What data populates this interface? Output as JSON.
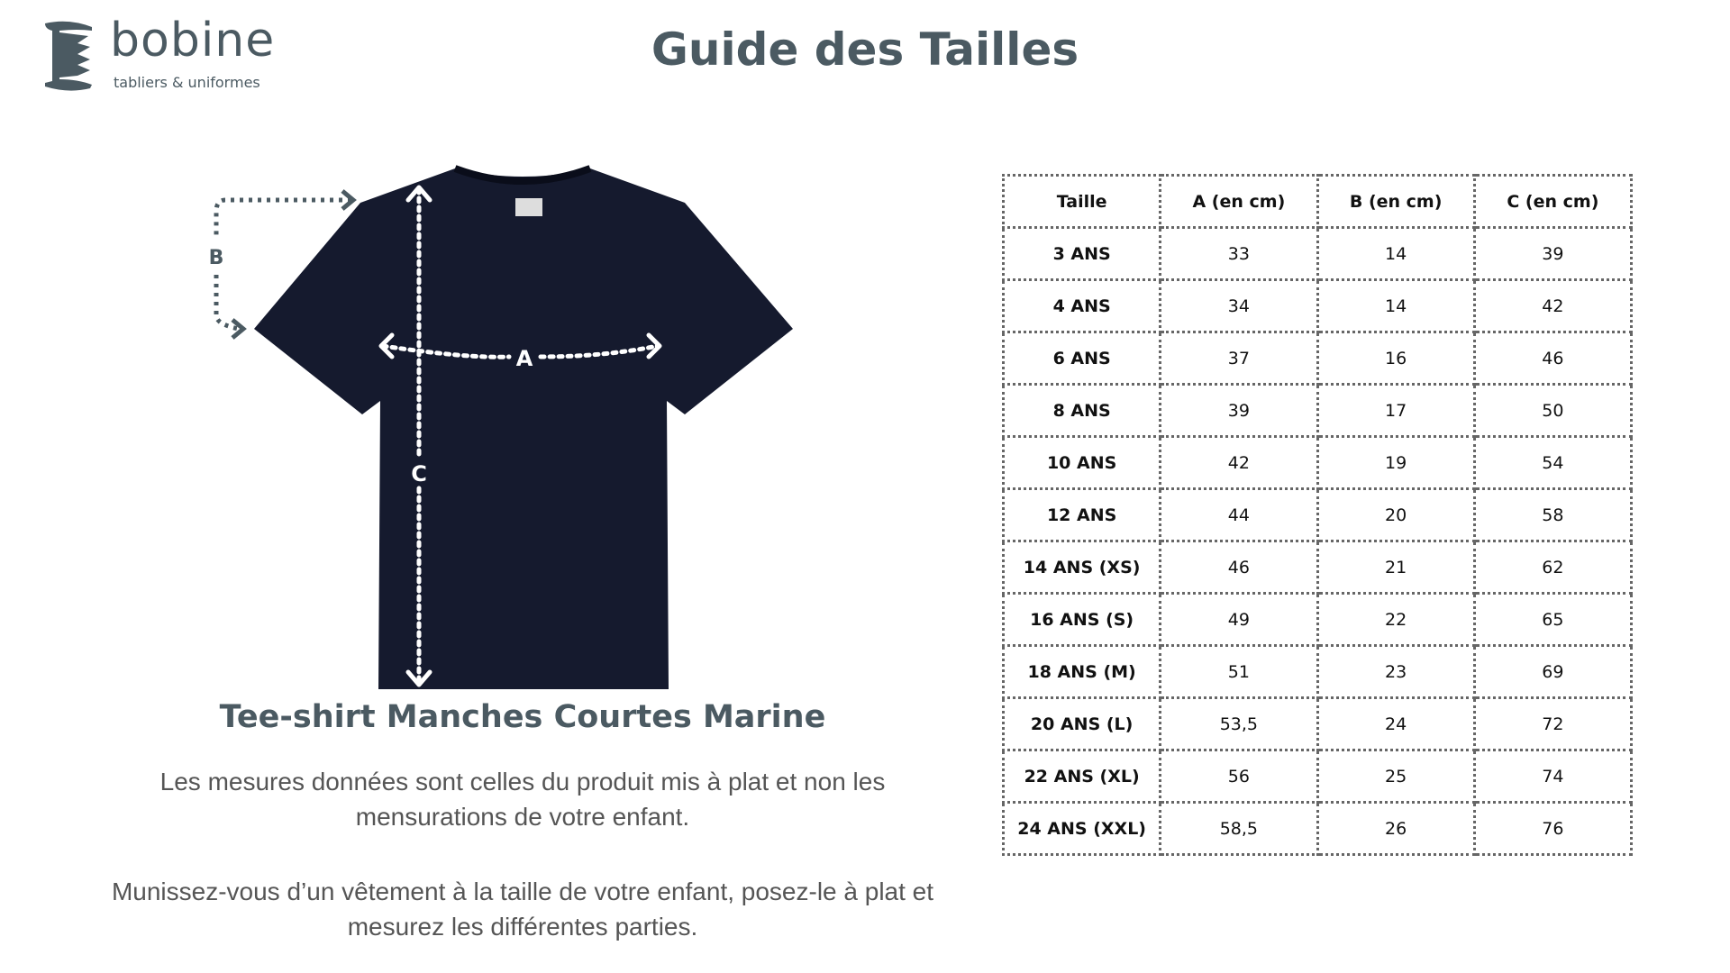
{
  "logo": {
    "word": "bobine",
    "tagline": "tabliers & uniformes"
  },
  "title": "Guide des Tailles",
  "diagram": {
    "label_a": "A",
    "label_b": "B",
    "label_c": "C",
    "shirt_color": "#151a2e"
  },
  "product_name": "Tee-shirt Manches Courtes Marine",
  "paragraphs": [
    "Les mesures données sont celles du produit mis à plat et non les mensurations de votre enfant.",
    "Munissez-vous d’un vêtement à la taille de votre enfant, posez-le à plat et mesurez les différentes parties."
  ],
  "table": {
    "headers": [
      "Taille",
      "A (en cm)",
      "B (en cm)",
      "C (en cm)"
    ],
    "rows": [
      [
        "3 ANS",
        "33",
        "14",
        "39"
      ],
      [
        "4 ANS",
        "34",
        "14",
        "42"
      ],
      [
        "6 ANS",
        "37",
        "16",
        "46"
      ],
      [
        "8 ANS",
        "39",
        "17",
        "50"
      ],
      [
        "10 ANS",
        "42",
        "19",
        "54"
      ],
      [
        "12 ANS",
        "44",
        "20",
        "58"
      ],
      [
        "14 ANS (XS)",
        "46",
        "21",
        "62"
      ],
      [
        "16 ANS (S)",
        "49",
        "22",
        "65"
      ],
      [
        "18 ANS (M)",
        "51",
        "23",
        "69"
      ],
      [
        "20 ANS (L)",
        "53,5",
        "24",
        "72"
      ],
      [
        "22 ANS (XL)",
        "56",
        "25",
        "74"
      ],
      [
        "24 ANS (XXL)",
        "58,5",
        "26",
        "76"
      ]
    ]
  }
}
